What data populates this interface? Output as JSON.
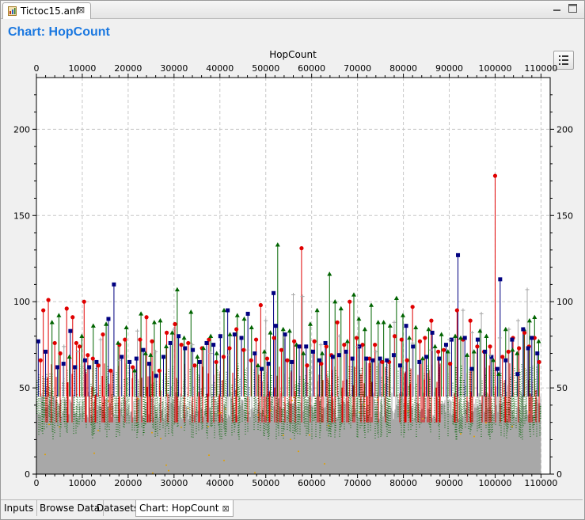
{
  "editor": {
    "tab_label": "Tictoc15.anf",
    "tab_icon": "anf-file-icon",
    "close_icon": "close-icon"
  },
  "window_controls": [
    "minimize-icon",
    "maximize-icon"
  ],
  "chart_heading": "Chart: HopCount",
  "legend_button_icon": "legend-list-icon",
  "bottom_tabs": [
    {
      "label": "Inputs",
      "active": false
    },
    {
      "label": "Browse Data",
      "active": false
    },
    {
      "label": "Datasets",
      "active": false
    },
    {
      "label": "Chart: HopCount",
      "active": true
    }
  ],
  "colors": {
    "title": "#1b78e0",
    "grid": "#c8c8c8",
    "series_gray": "#a8a8a8",
    "series_green": "#006400",
    "series_red": "#e00000",
    "series_navy": "#000080",
    "series_orange": "#e0a000"
  },
  "chart_data": {
    "type": "scatter",
    "title": "HopCount",
    "xlim": [
      0,
      112000
    ],
    "ylim": [
      0,
      230
    ],
    "x_ticks": [
      0,
      10000,
      20000,
      30000,
      40000,
      50000,
      60000,
      70000,
      80000,
      90000,
      100000,
      110000
    ],
    "y_ticks": [
      0,
      50,
      100,
      150,
      200
    ],
    "grid": true,
    "axes_mirrored": true,
    "dense_band": {
      "description": "gray points densely filling 0–45 across full range",
      "x_range": [
        0,
        110000
      ],
      "y_range": [
        0,
        45
      ]
    },
    "series": [
      {
        "marker": "circle",
        "color": "#e00000",
        "points": [
          [
            900,
            66
          ],
          [
            1500,
            95
          ],
          [
            2600,
            101
          ],
          [
            4000,
            76
          ],
          [
            5200,
            70
          ],
          [
            6600,
            96
          ],
          [
            7900,
            91
          ],
          [
            8700,
            76
          ],
          [
            9400,
            74
          ],
          [
            10400,
            100
          ],
          [
            11200,
            69
          ],
          [
            12300,
            67
          ],
          [
            13500,
            63
          ],
          [
            14500,
            81
          ],
          [
            16200,
            60
          ],
          [
            18100,
            75
          ],
          [
            19300,
            78
          ],
          [
            21000,
            62
          ],
          [
            22600,
            78
          ],
          [
            24000,
            91
          ],
          [
            25200,
            77
          ],
          [
            26800,
            60
          ],
          [
            28400,
            82
          ],
          [
            30200,
            87
          ],
          [
            31600,
            75
          ],
          [
            33100,
            76
          ],
          [
            34500,
            63
          ],
          [
            36100,
            73
          ],
          [
            37600,
            78
          ],
          [
            39200,
            65
          ],
          [
            40800,
            68
          ],
          [
            42100,
            73
          ],
          [
            43600,
            84
          ],
          [
            45200,
            72
          ],
          [
            46800,
            66
          ],
          [
            47900,
            78
          ],
          [
            48900,
            98
          ],
          [
            50300,
            67
          ],
          [
            51800,
            79
          ],
          [
            53400,
            72
          ],
          [
            54700,
            66
          ],
          [
            56200,
            77
          ],
          [
            57800,
            131
          ],
          [
            59000,
            63
          ],
          [
            60600,
            77
          ],
          [
            62100,
            64
          ],
          [
            63200,
            74
          ],
          [
            64300,
            69
          ],
          [
            65600,
            88
          ],
          [
            67100,
            75
          ],
          [
            68300,
            100
          ],
          [
            69800,
            79
          ],
          [
            71100,
            75
          ],
          [
            72600,
            67
          ],
          [
            73800,
            75
          ],
          [
            75400,
            65
          ],
          [
            76900,
            65
          ],
          [
            78100,
            80
          ],
          [
            79600,
            78
          ],
          [
            80800,
            66
          ],
          [
            82000,
            97
          ],
          [
            83600,
            77
          ],
          [
            84700,
            79
          ],
          [
            86100,
            89
          ],
          [
            87600,
            71
          ],
          [
            88800,
            72
          ],
          [
            90200,
            64
          ],
          [
            91700,
            95
          ],
          [
            93000,
            78
          ],
          [
            94600,
            89
          ],
          [
            96100,
            74
          ],
          [
            97600,
            71
          ],
          [
            98900,
            74
          ],
          [
            100000,
            173
          ],
          [
            101600,
            68
          ],
          [
            102900,
            71
          ],
          [
            103900,
            79
          ],
          [
            105200,
            73
          ],
          [
            106400,
            82
          ],
          [
            107400,
            74
          ],
          [
            108600,
            79
          ],
          [
            109600,
            65
          ]
        ]
      },
      {
        "marker": "triangle",
        "color": "#006400",
        "points": [
          [
            3400,
            88
          ],
          [
            4900,
            92
          ],
          [
            7200,
            68
          ],
          [
            9900,
            80
          ],
          [
            12400,
            86
          ],
          [
            15200,
            87
          ],
          [
            17800,
            76
          ],
          [
            19600,
            85
          ],
          [
            21400,
            60
          ],
          [
            22800,
            93
          ],
          [
            23800,
            70
          ],
          [
            24900,
            69
          ],
          [
            25700,
            88
          ],
          [
            27000,
            89
          ],
          [
            28300,
            74
          ],
          [
            29600,
            82
          ],
          [
            30700,
            107
          ],
          [
            32200,
            79
          ],
          [
            33700,
            94
          ],
          [
            35100,
            68
          ],
          [
            36400,
            73
          ],
          [
            38000,
            80
          ],
          [
            39300,
            70
          ],
          [
            40900,
            95
          ],
          [
            42200,
            81
          ],
          [
            43800,
            92
          ],
          [
            45300,
            90
          ],
          [
            46900,
            85
          ],
          [
            48300,
            63
          ],
          [
            49700,
            71
          ],
          [
            51000,
            82
          ],
          [
            52600,
            133
          ],
          [
            53800,
            84
          ],
          [
            55200,
            83
          ],
          [
            56700,
            75
          ],
          [
            58200,
            70
          ],
          [
            59700,
            87
          ],
          [
            61200,
            95
          ],
          [
            62300,
            70
          ],
          [
            63900,
            116
          ],
          [
            65100,
            100
          ],
          [
            66400,
            96
          ],
          [
            67800,
            77
          ],
          [
            69200,
            104
          ],
          [
            70300,
            90
          ],
          [
            71600,
            84
          ],
          [
            73000,
            98
          ],
          [
            74500,
            88
          ],
          [
            75700,
            88
          ],
          [
            77100,
            86
          ],
          [
            78500,
            102
          ],
          [
            79900,
            92
          ],
          [
            81300,
            79
          ],
          [
            82700,
            85
          ],
          [
            84200,
            67
          ],
          [
            85500,
            84
          ],
          [
            86900,
            74
          ],
          [
            88300,
            81
          ],
          [
            89700,
            71
          ],
          [
            91300,
            80
          ],
          [
            92500,
            79
          ],
          [
            93900,
            69
          ],
          [
            95400,
            71
          ],
          [
            96700,
            83
          ],
          [
            98100,
            80
          ],
          [
            99600,
            66
          ],
          [
            100800,
            58
          ],
          [
            102300,
            84
          ],
          [
            103800,
            72
          ],
          [
            104800,
            70
          ],
          [
            106300,
            84
          ],
          [
            107500,
            89
          ],
          [
            108600,
            91
          ],
          [
            109500,
            77
          ]
        ]
      },
      {
        "marker": "square",
        "color": "#000080",
        "points": [
          [
            400,
            77
          ],
          [
            2000,
            71
          ],
          [
            4600,
            62
          ],
          [
            5900,
            64
          ],
          [
            7400,
            83
          ],
          [
            8400,
            62
          ],
          [
            10600,
            66
          ],
          [
            11500,
            62
          ],
          [
            13100,
            65
          ],
          [
            15700,
            90
          ],
          [
            16900,
            110
          ],
          [
            18600,
            68
          ],
          [
            20300,
            65
          ],
          [
            21800,
            67
          ],
          [
            23300,
            72
          ],
          [
            24600,
            64
          ],
          [
            26100,
            57
          ],
          [
            27700,
            68
          ],
          [
            29200,
            76
          ],
          [
            31000,
            80
          ],
          [
            32400,
            73
          ],
          [
            34100,
            72
          ],
          [
            35600,
            65
          ],
          [
            37100,
            76
          ],
          [
            38600,
            75
          ],
          [
            40100,
            80
          ],
          [
            41700,
            95
          ],
          [
            43200,
            81
          ],
          [
            44700,
            79
          ],
          [
            46100,
            93
          ],
          [
            47600,
            70
          ],
          [
            49100,
            61
          ],
          [
            50600,
            64
          ],
          [
            51700,
            105
          ],
          [
            52200,
            86
          ],
          [
            54200,
            81
          ],
          [
            55700,
            65
          ],
          [
            57300,
            74
          ],
          [
            58800,
            74
          ],
          [
            60300,
            71
          ],
          [
            61700,
            66
          ],
          [
            63000,
            76
          ],
          [
            64600,
            68
          ],
          [
            66000,
            69
          ],
          [
            67500,
            71
          ],
          [
            68900,
            67
          ],
          [
            70400,
            74
          ],
          [
            71900,
            67
          ],
          [
            73300,
            66
          ],
          [
            74900,
            67
          ],
          [
            76400,
            66
          ],
          [
            77900,
            69
          ],
          [
            79300,
            63
          ],
          [
            80600,
            86
          ],
          [
            82100,
            74
          ],
          [
            83500,
            65
          ],
          [
            85000,
            68
          ],
          [
            86300,
            82
          ],
          [
            87800,
            67
          ],
          [
            89300,
            75
          ],
          [
            90500,
            78
          ],
          [
            91900,
            127
          ],
          [
            93400,
            79
          ],
          [
            94900,
            61
          ],
          [
            96200,
            78
          ],
          [
            97800,
            71
          ],
          [
            99200,
            68
          ],
          [
            100500,
            61
          ],
          [
            101100,
            113
          ],
          [
            102300,
            66
          ],
          [
            103700,
            78
          ],
          [
            104900,
            58
          ],
          [
            106100,
            84
          ],
          [
            107200,
            73
          ],
          [
            108000,
            79
          ],
          [
            109200,
            70
          ]
        ]
      },
      {
        "marker": "plus",
        "color": "#a8a8a8",
        "points": [
          [
            6000,
            74
          ],
          [
            9000,
            71
          ],
          [
            14000,
            78
          ],
          [
            18000,
            66
          ],
          [
            22000,
            83
          ],
          [
            26000,
            71
          ],
          [
            30000,
            84
          ],
          [
            34000,
            75
          ],
          [
            38000,
            70
          ],
          [
            42000,
            69
          ],
          [
            46000,
            72
          ],
          [
            50000,
            89
          ],
          [
            54000,
            79
          ],
          [
            56000,
            104
          ],
          [
            58000,
            103
          ],
          [
            62000,
            75
          ],
          [
            66000,
            80
          ],
          [
            70000,
            74
          ],
          [
            74000,
            71
          ],
          [
            78000,
            88
          ],
          [
            82000,
            76
          ],
          [
            86000,
            72
          ],
          [
            90000,
            78
          ],
          [
            93000,
            95
          ],
          [
            95000,
            82
          ],
          [
            97000,
            93
          ],
          [
            99000,
            69
          ],
          [
            101000,
            79
          ],
          [
            103000,
            84
          ],
          [
            105000,
            89
          ],
          [
            107000,
            107
          ]
        ]
      }
    ]
  }
}
